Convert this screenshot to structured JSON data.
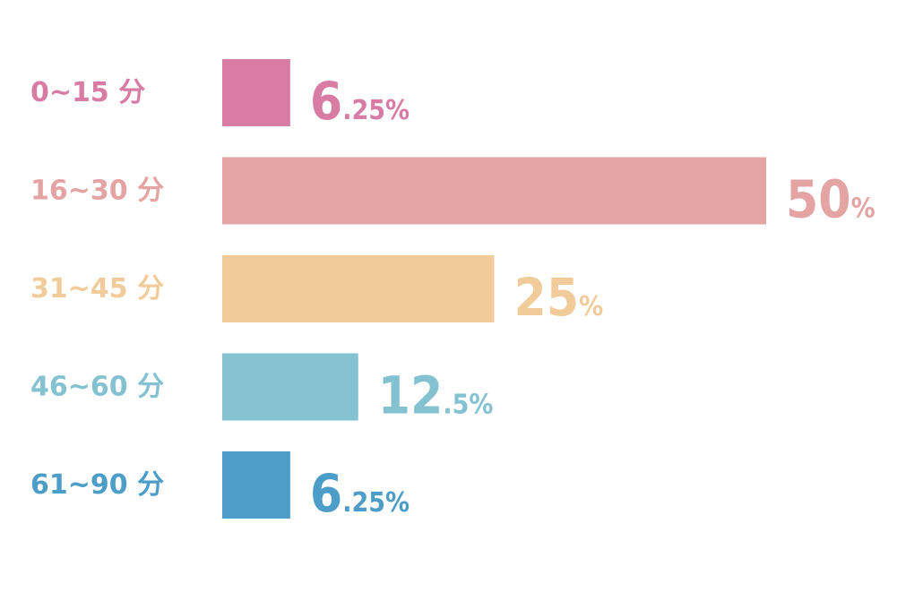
{
  "chart_data": {
    "type": "bar",
    "orientation": "horizontal",
    "xlim": [
      0,
      50
    ],
    "grid": false,
    "legend": "none",
    "categories": [
      "0~15 分",
      "16~30 分",
      "31~45 分",
      "46~60 分",
      "61~90 分"
    ],
    "values": [
      6.25,
      50,
      25,
      12.5,
      6.25
    ],
    "value_labels": [
      {
        "big": "6",
        "small": ".25%"
      },
      {
        "big": "50",
        "small": "%"
      },
      {
        "big": "25",
        "small": "%"
      },
      {
        "big": "12",
        "small": ".5%"
      },
      {
        "big": "6",
        "small": ".25%"
      }
    ],
    "colors": [
      "#d87ca4",
      "#e4a4a4",
      "#f1cc9a",
      "#84c2d2",
      "#4c9dc7"
    ]
  }
}
